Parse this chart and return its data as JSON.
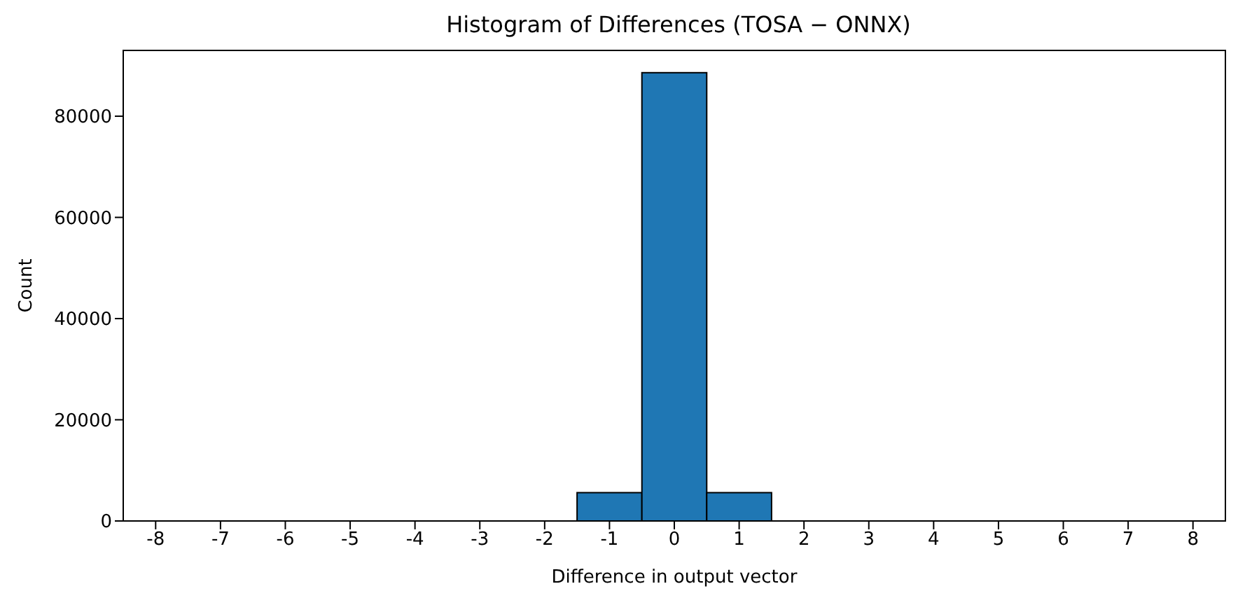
{
  "chart_data": {
    "type": "histogram",
    "title": "Histogram of Differences (TOSA − ONNX)",
    "xlabel": "Difference in output vector",
    "ylabel": "Count",
    "bins": [
      -1.5,
      -0.5,
      0.5,
      1.5
    ],
    "values": [
      5600,
      88600,
      5600
    ],
    "color": "#1f77b4",
    "xlim": [
      -8.5,
      8.5
    ],
    "xticks": [
      -8,
      -7,
      -6,
      -5,
      -4,
      -3,
      -2,
      -1,
      0,
      1,
      2,
      3,
      4,
      5,
      6,
      7,
      8
    ],
    "ylim": [
      0,
      93000
    ],
    "yticks": [
      0,
      20000,
      40000,
      60000,
      80000
    ],
    "grid": false,
    "legend": false
  }
}
